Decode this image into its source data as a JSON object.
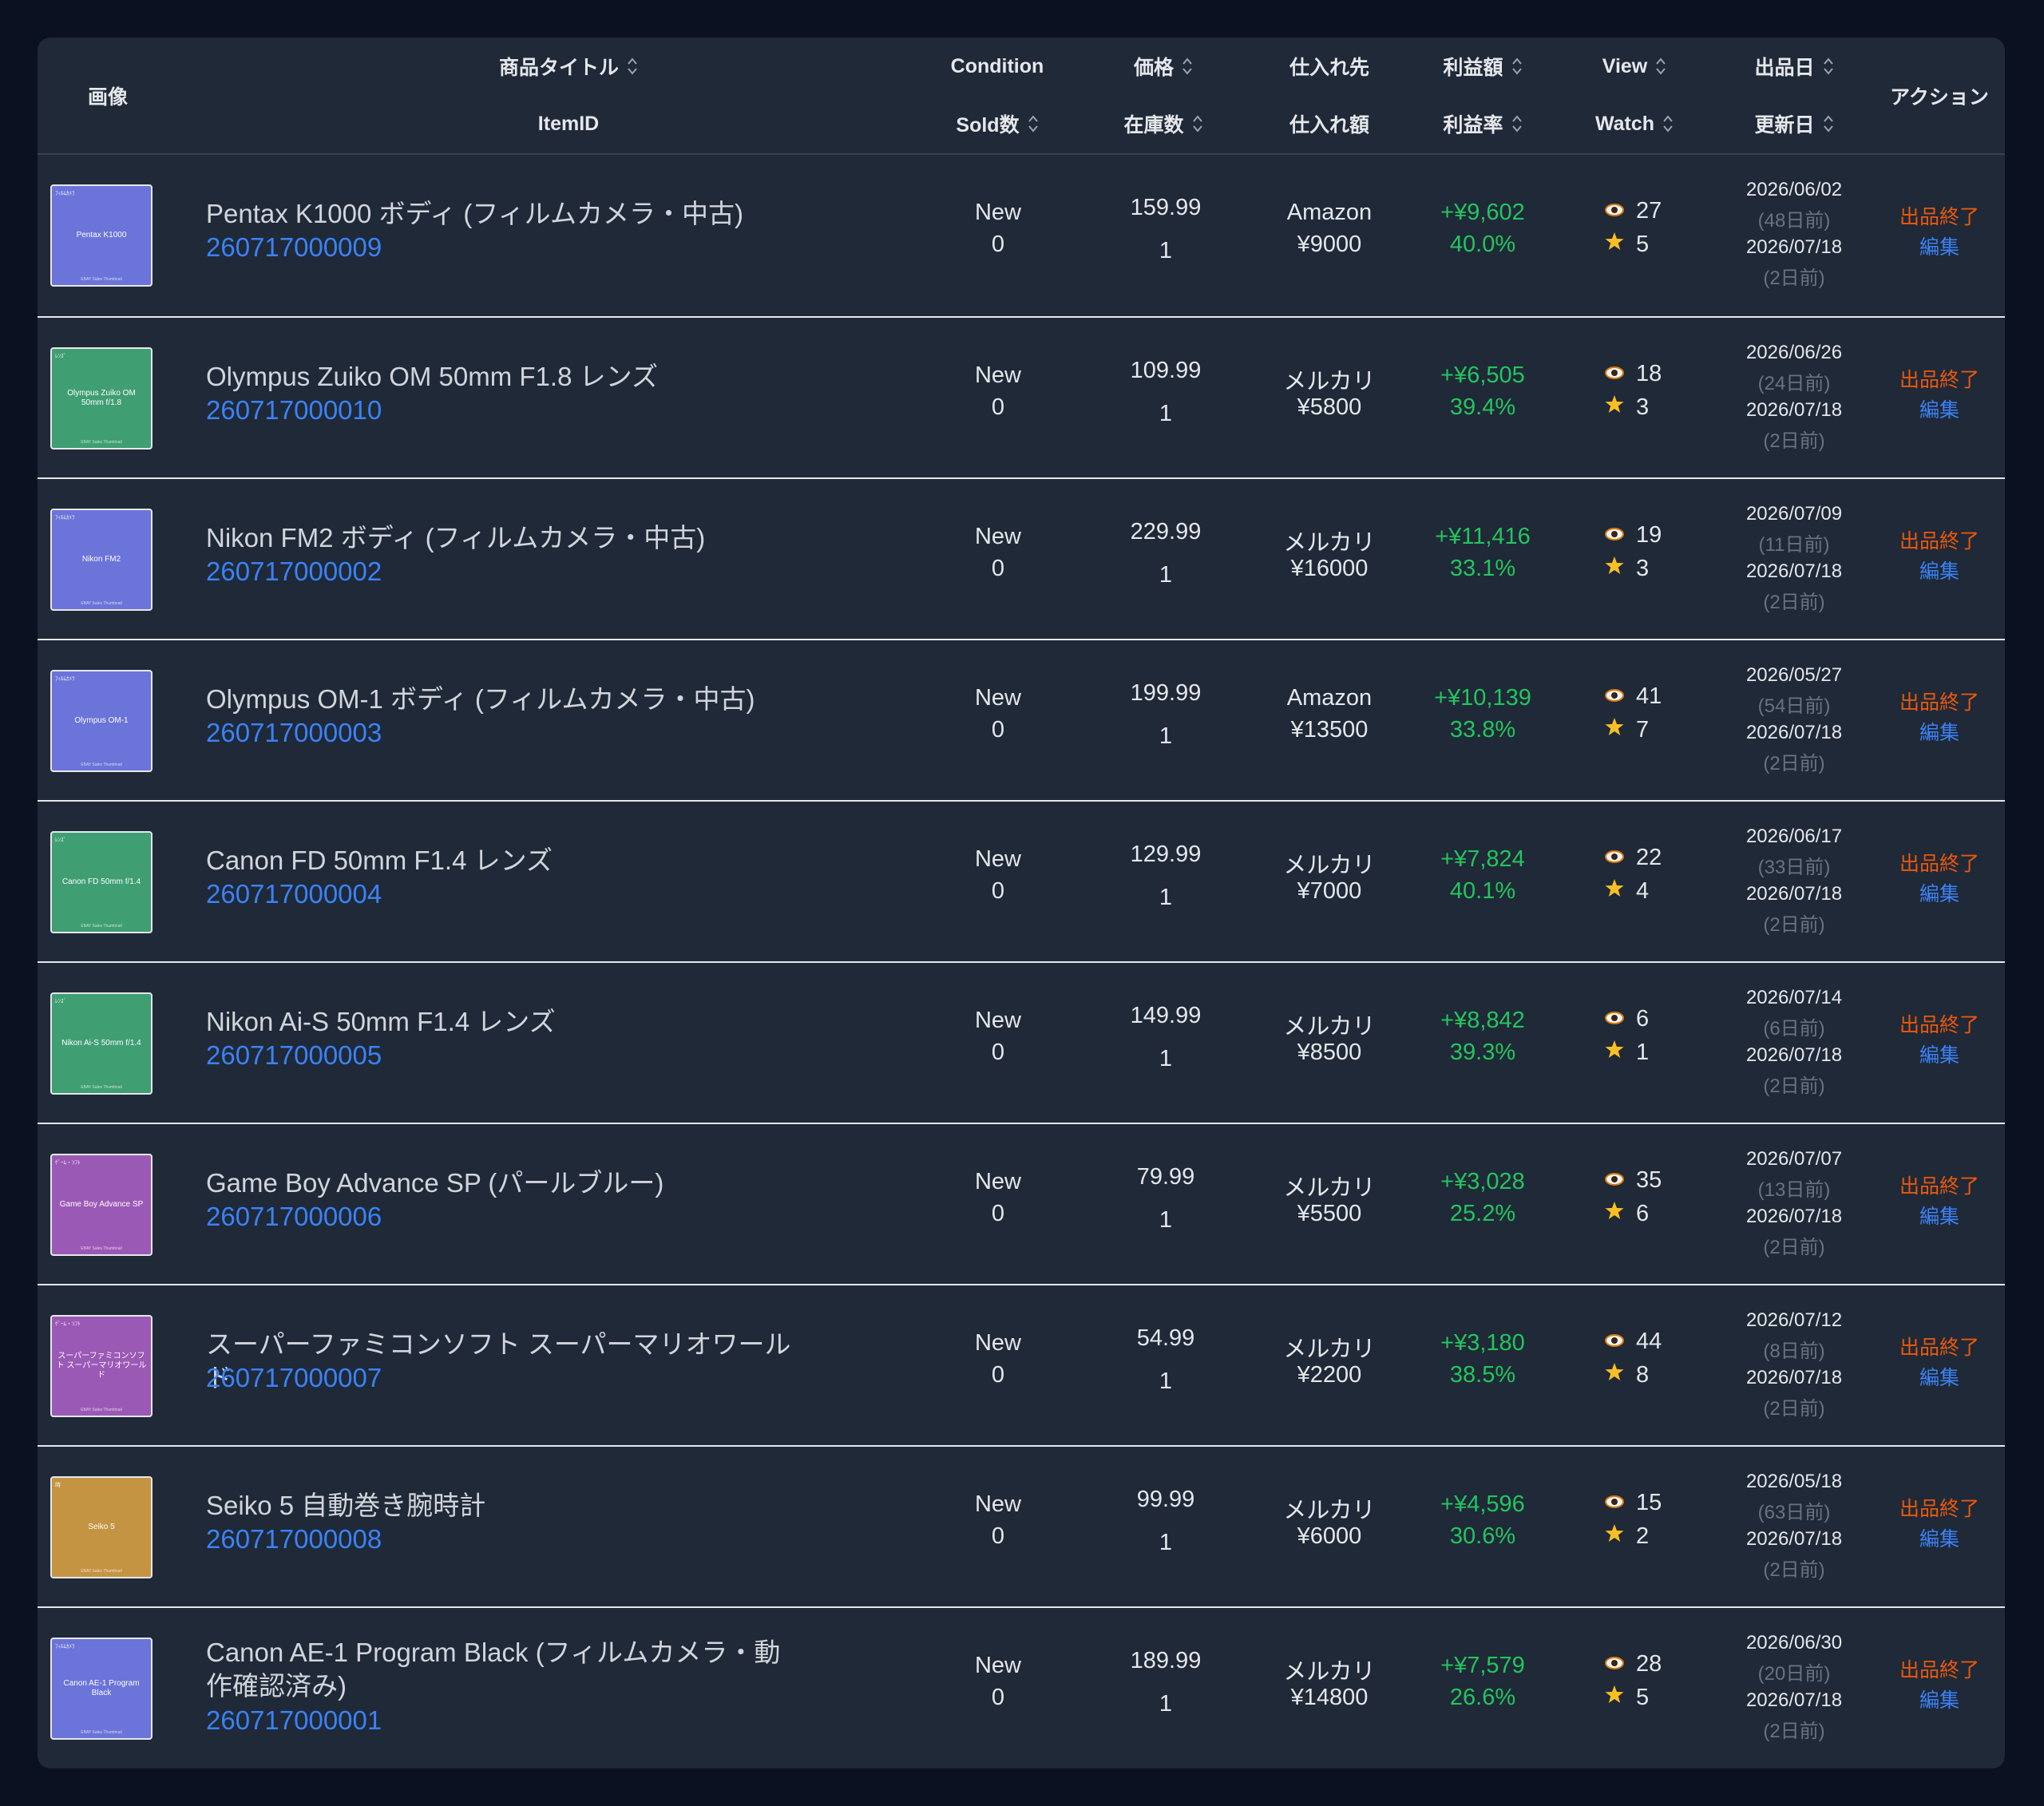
{
  "header": {
    "image": "画像",
    "title": "商品タイトル",
    "itemid": "ItemID",
    "condition": "Condition",
    "sold": "Sold数",
    "price": "価格",
    "stock": "在庫数",
    "source": "仕入れ先",
    "cost": "仕入れ額",
    "profit": "利益額",
    "rate": "利益率",
    "view": "View",
    "watch": "Watch",
    "listed": "出品日",
    "updated": "更新日",
    "action": "アクション"
  },
  "colors": {
    "blue": "#6b74d9",
    "green": "#3f9e72",
    "purple": "#9b59b6",
    "gold": "#c59443",
    "link": "#3b82f6",
    "profit": "#22c55e",
    "end": "#ea580c"
  },
  "icons": {
    "view": "eye-icon",
    "watch": "star-icon"
  },
  "rows": [
    {
      "thumb_color": "#6b74d9",
      "thumb_tag": "ﾌｨﾙﾑｶﾒﾗ",
      "thumb_text": "Pentax K1000",
      "thumb_footer": "EBAY Sales Thumbnail",
      "title": "Pentax K1000 ボディ (フィルムカメラ・中古)",
      "itemid": "260717000009",
      "condition": "New",
      "sold": "0",
      "price": "159.99",
      "stock": "1",
      "source": "Amazon",
      "cost": "¥9000",
      "profit": "+¥9,602",
      "rate": "40.0%",
      "view": "27",
      "watch": "5",
      "listed": "2026/06/02",
      "listed_ago": "(48日前)",
      "updated": "2026/07/18",
      "updated_ago": "(2日前)",
      "end": "出品終了",
      "edit": "編集"
    },
    {
      "thumb_color": "#3f9e72",
      "thumb_tag": "ﾚﾝｽﾞ",
      "thumb_text": "Olympus Zuiko OM 50mm f/1.8",
      "thumb_footer": "EBAY Sales Thumbnail",
      "title": "Olympus Zuiko OM 50mm F1.8 レンズ",
      "itemid": "260717000010",
      "condition": "New",
      "sold": "0",
      "price": "109.99",
      "stock": "1",
      "source": "メルカリ",
      "cost": "¥5800",
      "profit": "+¥6,505",
      "rate": "39.4%",
      "view": "18",
      "watch": "3",
      "listed": "2026/06/26",
      "listed_ago": "(24日前)",
      "updated": "2026/07/18",
      "updated_ago": "(2日前)",
      "end": "出品終了",
      "edit": "編集"
    },
    {
      "thumb_color": "#6b74d9",
      "thumb_tag": "ﾌｨﾙﾑｶﾒﾗ",
      "thumb_text": "Nikon FM2",
      "thumb_footer": "EBAY Sales Thumbnail",
      "title": "Nikon FM2 ボディ (フィルムカメラ・中古)",
      "itemid": "260717000002",
      "condition": "New",
      "sold": "0",
      "price": "229.99",
      "stock": "1",
      "source": "メルカリ",
      "cost": "¥16000",
      "profit": "+¥11,416",
      "rate": "33.1%",
      "view": "19",
      "watch": "3",
      "listed": "2026/07/09",
      "listed_ago": "(11日前)",
      "updated": "2026/07/18",
      "updated_ago": "(2日前)",
      "end": "出品終了",
      "edit": "編集"
    },
    {
      "thumb_color": "#6b74d9",
      "thumb_tag": "ﾌｨﾙﾑｶﾒﾗ",
      "thumb_text": "Olympus OM-1",
      "thumb_footer": "EBAY Sales Thumbnail",
      "title": "Olympus OM-1 ボディ (フィルムカメラ・中古)",
      "itemid": "260717000003",
      "condition": "New",
      "sold": "0",
      "price": "199.99",
      "stock": "1",
      "source": "Amazon",
      "cost": "¥13500",
      "profit": "+¥10,139",
      "rate": "33.8%",
      "view": "41",
      "watch": "7",
      "listed": "2026/05/27",
      "listed_ago": "(54日前)",
      "updated": "2026/07/18",
      "updated_ago": "(2日前)",
      "end": "出品終了",
      "edit": "編集"
    },
    {
      "thumb_color": "#3f9e72",
      "thumb_tag": "ﾚﾝｽﾞ",
      "thumb_text": "Canon FD 50mm f/1.4",
      "thumb_footer": "EBAY Sales Thumbnail",
      "title": "Canon FD 50mm F1.4 レンズ",
      "itemid": "260717000004",
      "condition": "New",
      "sold": "0",
      "price": "129.99",
      "stock": "1",
      "source": "メルカリ",
      "cost": "¥7000",
      "profit": "+¥7,824",
      "rate": "40.1%",
      "view": "22",
      "watch": "4",
      "listed": "2026/06/17",
      "listed_ago": "(33日前)",
      "updated": "2026/07/18",
      "updated_ago": "(2日前)",
      "end": "出品終了",
      "edit": "編集"
    },
    {
      "thumb_color": "#3f9e72",
      "thumb_tag": "ﾚﾝｽﾞ",
      "thumb_text": "Nikon Ai-S 50mm f/1.4",
      "thumb_footer": "EBAY Sales Thumbnail",
      "title": "Nikon Ai-S 50mm F1.4 レンズ",
      "itemid": "260717000005",
      "condition": "New",
      "sold": "0",
      "price": "149.99",
      "stock": "1",
      "source": "メルカリ",
      "cost": "¥8500",
      "profit": "+¥8,842",
      "rate": "39.3%",
      "view": "6",
      "watch": "1",
      "listed": "2026/07/14",
      "listed_ago": "(6日前)",
      "updated": "2026/07/18",
      "updated_ago": "(2日前)",
      "end": "出品終了",
      "edit": "編集"
    },
    {
      "thumb_color": "#9b59b6",
      "thumb_tag": "ｹﾞｰﾑ・ｿﾌﾄ",
      "thumb_text": "Game Boy Advance SP",
      "thumb_footer": "EBAY Sales Thumbnail",
      "title": "Game Boy Advance SP (パールブルー)",
      "itemid": "260717000006",
      "condition": "New",
      "sold": "0",
      "price": "79.99",
      "stock": "1",
      "source": "メルカリ",
      "cost": "¥5500",
      "profit": "+¥3,028",
      "rate": "25.2%",
      "view": "35",
      "watch": "6",
      "listed": "2026/07/07",
      "listed_ago": "(13日前)",
      "updated": "2026/07/18",
      "updated_ago": "(2日前)",
      "end": "出品終了",
      "edit": "編集"
    },
    {
      "thumb_color": "#9b59b6",
      "thumb_tag": "ｹﾞｰﾑ・ｿﾌﾄ",
      "thumb_text": "スーパーファミコンソフト スーパーマリオワールド",
      "thumb_footer": "EBAY Sales Thumbnail",
      "title": "スーパーファミコンソフト スーパーマリオワールド",
      "itemid": "260717000007",
      "condition": "New",
      "sold": "0",
      "price": "54.99",
      "stock": "1",
      "source": "メルカリ",
      "cost": "¥2200",
      "profit": "+¥3,180",
      "rate": "38.5%",
      "view": "44",
      "watch": "8",
      "listed": "2026/07/12",
      "listed_ago": "(8日前)",
      "updated": "2026/07/18",
      "updated_ago": "(2日前)",
      "end": "出品終了",
      "edit": "編集"
    },
    {
      "thumb_color": "#c59443",
      "thumb_tag": "時",
      "thumb_text": "Seiko 5",
      "thumb_footer": "EBAY Sales Thumbnail",
      "title": "Seiko 5 自動巻き腕時計",
      "itemid": "260717000008",
      "condition": "New",
      "sold": "0",
      "price": "99.99",
      "stock": "1",
      "source": "メルカリ",
      "cost": "¥6000",
      "profit": "+¥4,596",
      "rate": "30.6%",
      "view": "15",
      "watch": "2",
      "listed": "2026/05/18",
      "listed_ago": "(63日前)",
      "updated": "2026/07/18",
      "updated_ago": "(2日前)",
      "end": "出品終了",
      "edit": "編集"
    },
    {
      "thumb_color": "#6b74d9",
      "thumb_tag": "ﾌｨﾙﾑｶﾒﾗ",
      "thumb_text": "Canon AE-1 Program Black",
      "thumb_footer": "EBAY Sales Thumbnail",
      "title": "Canon AE-1 Program Black (フィルムカメラ・動作確認済み)",
      "itemid": "260717000001",
      "condition": "New",
      "sold": "0",
      "price": "189.99",
      "stock": "1",
      "source": "メルカリ",
      "cost": "¥14800",
      "profit": "+¥7,579",
      "rate": "26.6%",
      "view": "28",
      "watch": "5",
      "listed": "2026/06/30",
      "listed_ago": "(20日前)",
      "updated": "2026/07/18",
      "updated_ago": "(2日前)",
      "end": "出品終了",
      "edit": "編集"
    }
  ]
}
